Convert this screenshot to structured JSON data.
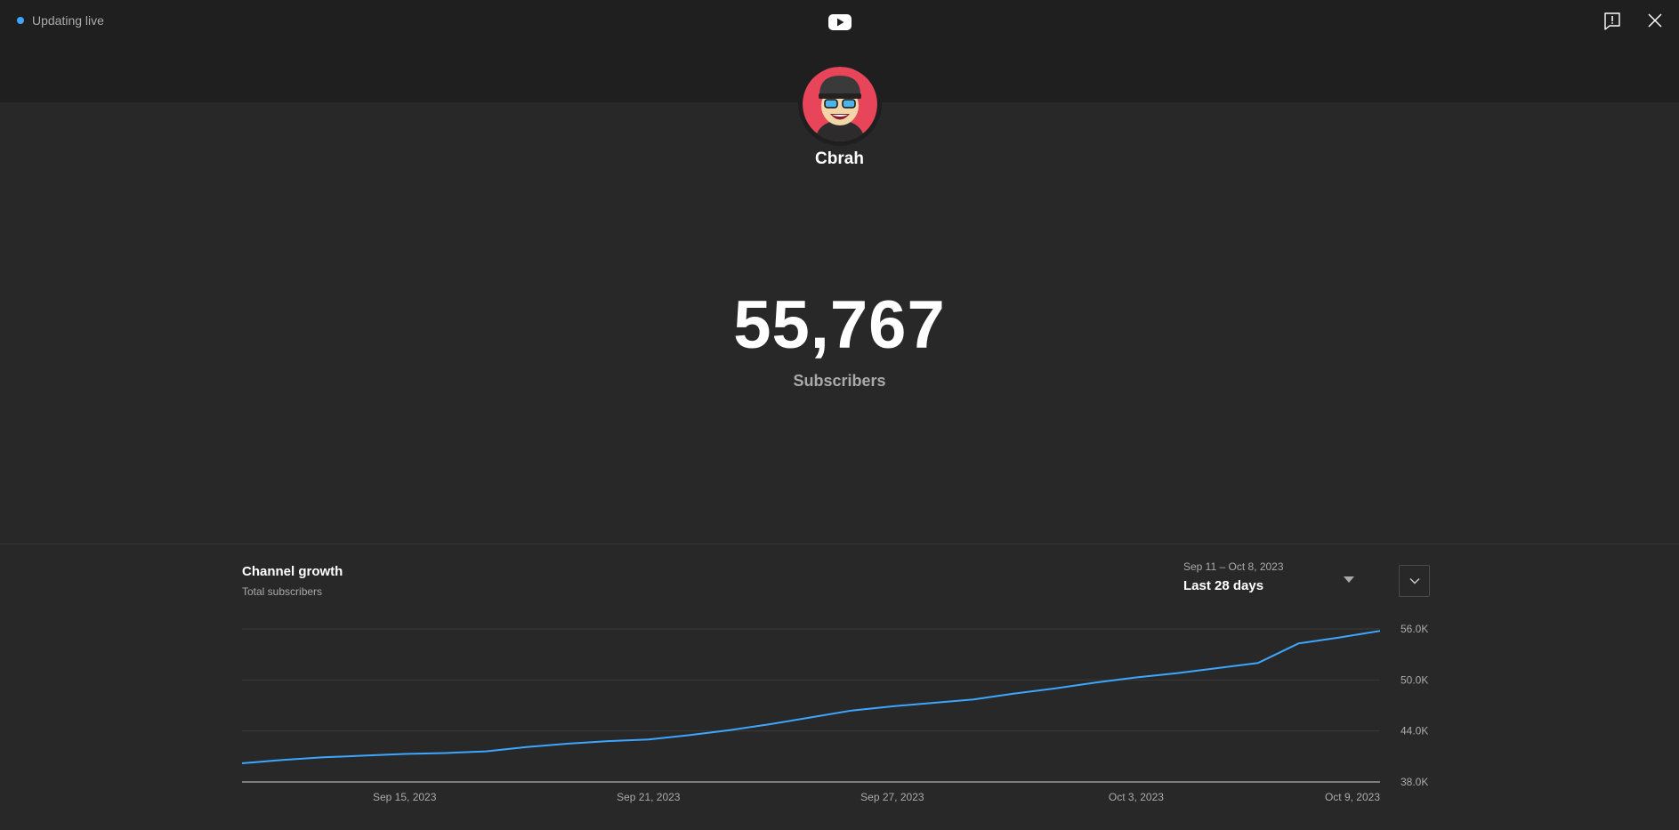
{
  "status": {
    "label": "Updating live"
  },
  "icons": {
    "logo": "youtube-logo-icon",
    "feedback": "feedback-icon",
    "close": "close-icon",
    "expand": "chevron-down-icon"
  },
  "channel": {
    "name": "Cbrah"
  },
  "stats": {
    "subscriber_count": "55,767",
    "subscriber_label": "Subscribers"
  },
  "growth": {
    "title": "Channel growth",
    "subtitle": "Total subscribers",
    "range_dates": "Sep 11 – Oct 8, 2023",
    "range_label": "Last 28 days"
  },
  "colors": {
    "accent": "#3ea6ff",
    "background": "#282828",
    "header": "#1f1f1f"
  },
  "chart_data": {
    "type": "line",
    "x_start": "2023-09-11",
    "x_end": "2023-10-09",
    "xticks": [
      {
        "date": "2023-09-15",
        "label": "Sep 15, 2023"
      },
      {
        "date": "2023-09-21",
        "label": "Sep 21, 2023"
      },
      {
        "date": "2023-09-27",
        "label": "Sep 27, 2023"
      },
      {
        "date": "2023-10-03",
        "label": "Oct 3, 2023"
      },
      {
        "date": "2023-10-09",
        "label": "Oct 9, 2023"
      }
    ],
    "yticks": [
      {
        "value": 38000,
        "label": "38.0K"
      },
      {
        "value": 44000,
        "label": "44.0K"
      },
      {
        "value": 50000,
        "label": "50.0K"
      },
      {
        "value": 56000,
        "label": "56.0K"
      }
    ],
    "ylim": [
      38000,
      56000
    ],
    "grid": true,
    "series": [
      {
        "color": "#3ea6ff",
        "points": [
          [
            "2023-09-11",
            40200
          ],
          [
            "2023-09-12",
            40600
          ],
          [
            "2023-09-13",
            40900
          ],
          [
            "2023-09-14",
            41100
          ],
          [
            "2023-09-15",
            41300
          ],
          [
            "2023-09-16",
            41400
          ],
          [
            "2023-09-17",
            41600
          ],
          [
            "2023-09-18",
            42100
          ],
          [
            "2023-09-19",
            42500
          ],
          [
            "2023-09-20",
            42800
          ],
          [
            "2023-09-21",
            43000
          ],
          [
            "2023-09-22",
            43500
          ],
          [
            "2023-09-23",
            44100
          ],
          [
            "2023-09-24",
            44800
          ],
          [
            "2023-09-25",
            45600
          ],
          [
            "2023-09-26",
            46400
          ],
          [
            "2023-09-27",
            46900
          ],
          [
            "2023-09-28",
            47300
          ],
          [
            "2023-09-29",
            47700
          ],
          [
            "2023-09-30",
            48400
          ],
          [
            "2023-10-01",
            49000
          ],
          [
            "2023-10-02",
            49700
          ],
          [
            "2023-10-03",
            50300
          ],
          [
            "2023-10-04",
            50800
          ],
          [
            "2023-10-05",
            51400
          ],
          [
            "2023-10-06",
            52000
          ],
          [
            "2023-10-07",
            54300
          ],
          [
            "2023-10-08",
            55000
          ],
          [
            "2023-10-09",
            55767
          ]
        ]
      }
    ]
  }
}
